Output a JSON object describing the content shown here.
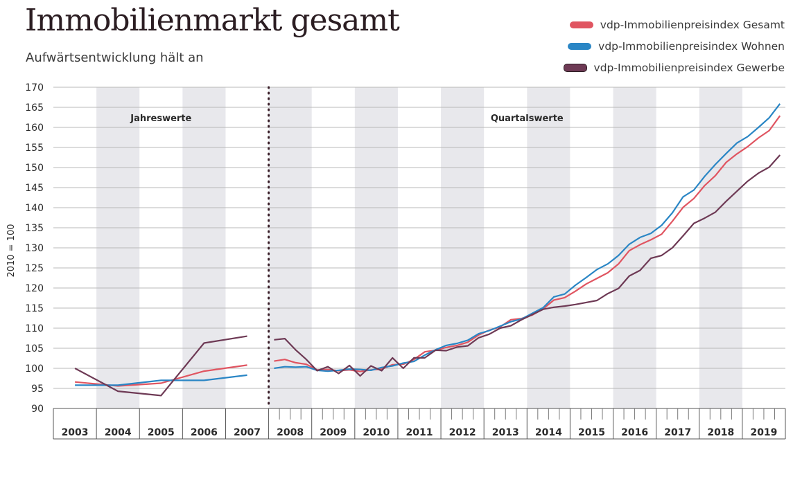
{
  "header": {
    "title": "Immobilienmarkt gesamt",
    "subtitle": "Aufwärtsentwicklung hält an"
  },
  "colors": {
    "gesamt": "#e05561",
    "wohnen": "#2a86c5",
    "gewerbe": "#6e3a55",
    "band": "#e8e8ec",
    "grid": "#b9b9b9",
    "divider": "#3a1f29"
  },
  "chart_data": {
    "type": "line",
    "ylabel": "2010 = 100",
    "ylim": [
      90,
      170
    ],
    "yticks": [
      90,
      95,
      100,
      105,
      110,
      115,
      120,
      125,
      130,
      135,
      140,
      145,
      150,
      155,
      160,
      165,
      170
    ],
    "xlabels": [
      "2003",
      "2004",
      "2005",
      "2006",
      "2007",
      "2008",
      "2009",
      "2010",
      "2011",
      "2012",
      "2013",
      "2014",
      "2015",
      "2016",
      "2017",
      "2018",
      "2019"
    ],
    "grid": true,
    "legend": "top-right",
    "sections": [
      {
        "label": "Jahreswerte"
      },
      {
        "label": "Quartalswerte"
      }
    ],
    "series": [
      {
        "key": "gesamt",
        "name": "vdp-Immobilienpreisindex Gesamt",
        "annual": [
          96.6,
          95.6,
          96.3,
          99.3,
          100.8
        ],
        "quarterly": [
          101.8,
          102.2,
          101.4,
          101.0,
          99.6,
          99.7,
          99.4,
          99.6,
          99.2,
          99.6,
          99.8,
          100.9,
          101.0,
          102.2,
          104.1,
          104.5,
          105.2,
          105.7,
          106.5,
          108.3,
          109.5,
          110.3,
          112.1,
          112.4,
          113.3,
          114.8,
          117.0,
          117.6,
          119.2,
          121.0,
          122.4,
          123.8,
          126.0,
          129.3,
          130.8,
          132.0,
          133.4,
          136.6,
          140.1,
          142.3,
          145.5,
          148.0,
          151.3,
          153.4,
          155.2,
          157.4,
          159.2,
          162.9
        ]
      },
      {
        "key": "wohnen",
        "name": "vdp-Immobilienpreisindex Wohnen",
        "annual": [
          95.8,
          95.8,
          97.0,
          97.0,
          98.3
        ],
        "quarterly": [
          100.0,
          100.4,
          100.3,
          100.4,
          99.5,
          99.3,
          99.5,
          99.8,
          99.7,
          99.5,
          100.2,
          100.6,
          101.3,
          101.7,
          103.3,
          104.6,
          105.7,
          106.2,
          107.0,
          108.6,
          109.4,
          110.5,
          111.6,
          112.3,
          113.7,
          115.1,
          117.8,
          118.5,
          120.7,
          122.6,
          124.6,
          126.0,
          128.1,
          130.9,
          132.6,
          133.6,
          135.6,
          138.7,
          142.7,
          144.4,
          147.8,
          150.8,
          153.5,
          156.1,
          157.7,
          160.0,
          162.4,
          165.9
        ]
      },
      {
        "key": "gewerbe",
        "name": "vdp-Immobilienpreisindex Gewerbe",
        "annual": [
          100.0,
          94.3,
          93.2,
          106.3,
          108.0
        ],
        "quarterly": [
          107.1,
          107.4,
          104.6,
          102.2,
          99.4,
          100.4,
          98.7,
          100.7,
          98.1,
          100.6,
          99.4,
          102.6,
          100.0,
          102.6,
          102.6,
          104.5,
          104.4,
          105.3,
          105.6,
          107.6,
          108.5,
          110.0,
          110.6,
          112.1,
          113.4,
          114.7,
          115.2,
          115.5,
          115.9,
          116.4,
          116.9,
          118.6,
          119.9,
          123.0,
          124.4,
          127.4,
          128.1,
          130.0,
          133.0,
          136.1,
          137.4,
          138.9,
          141.6,
          144.1,
          146.6,
          148.6,
          150.1,
          153.1
        ]
      }
    ]
  }
}
